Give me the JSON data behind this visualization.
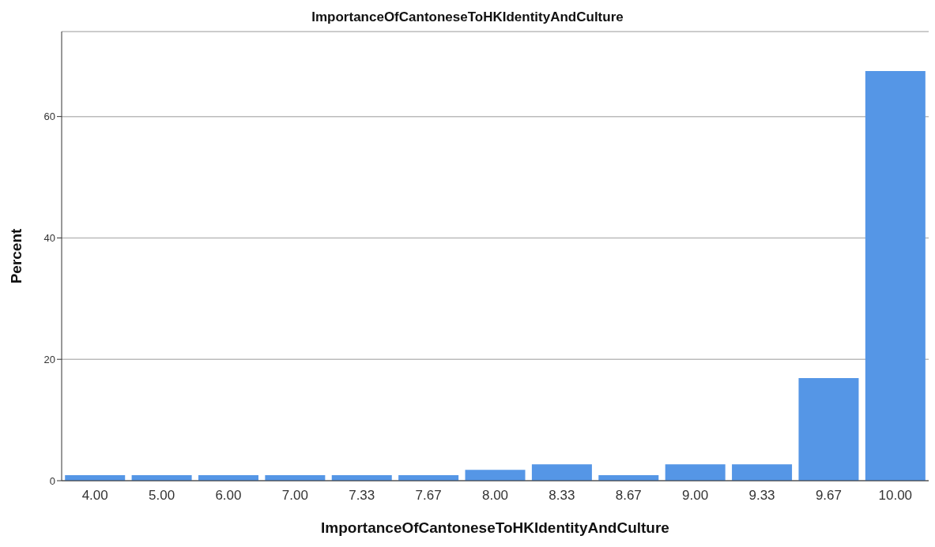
{
  "chart_data": {
    "type": "bar",
    "title": "ImportanceOfCantoneseToHKIdentityAndCulture",
    "xlabel": "ImportanceOfCantoneseToHKIdentityAndCulture",
    "ylabel": "Percent",
    "categories": [
      "4.00",
      "5.00",
      "6.00",
      "7.00",
      "7.33",
      "7.67",
      "8.00",
      "8.33",
      "8.67",
      "9.00",
      "9.33",
      "9.67",
      "10.00"
    ],
    "values": [
      0.9,
      0.9,
      0.9,
      0.9,
      0.9,
      0.9,
      1.8,
      2.7,
      0.9,
      2.7,
      2.7,
      16.9,
      67.5
    ],
    "color": "#5596e6",
    "ylim": [
      0,
      74
    ],
    "yticks": [
      0,
      20,
      40,
      60
    ],
    "grid": "y"
  }
}
